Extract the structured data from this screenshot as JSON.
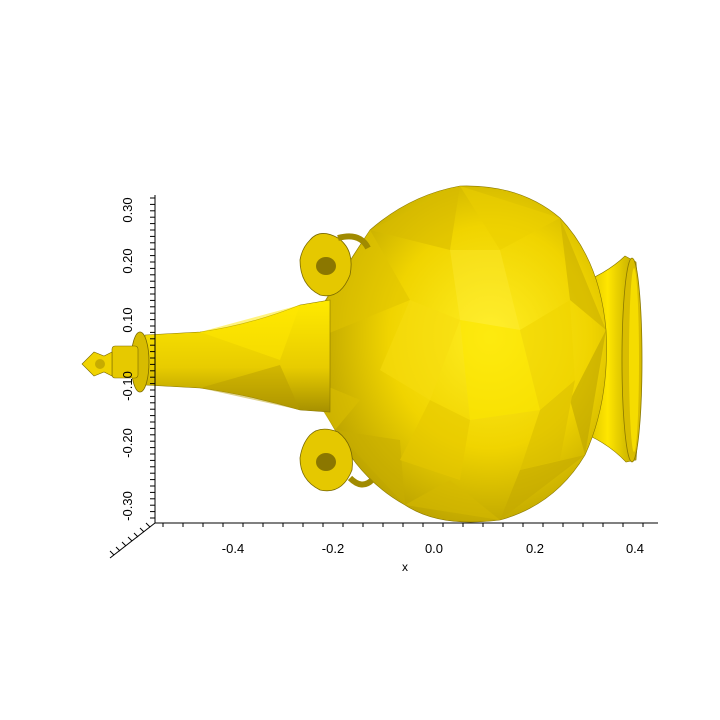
{
  "plot": {
    "object": "yellow vase 3D mesh",
    "mesh_color": "#f2d800",
    "mesh_highlight": "#ffee33",
    "mesh_shadow": "#9c8a00",
    "axis_color": "#000000",
    "x_axis": {
      "label": "x",
      "ticks": [
        "-0.4",
        "-0.2",
        "0.0",
        "0.2",
        "0.4"
      ]
    },
    "y_axis": {
      "ticks": [
        "-0.30",
        "-0.20",
        "-0.10",
        "0.10",
        "0.20",
        "0.30"
      ]
    }
  }
}
